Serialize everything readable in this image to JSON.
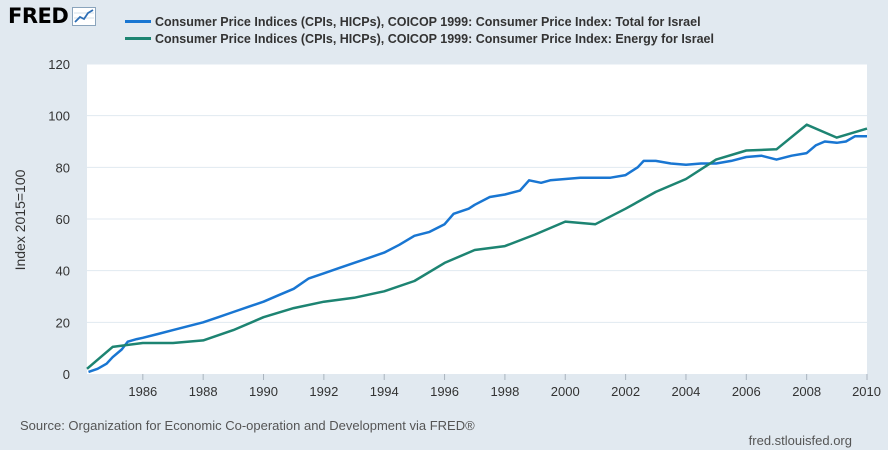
{
  "brand": {
    "logo_text": "FRED",
    "logo_icon": "chart-line-icon"
  },
  "chart_data": {
    "type": "line",
    "xlabel": "",
    "ylabel": "Index 2015=100",
    "xlim": [
      1984.15,
      2010.0
    ],
    "ylim": [
      0,
      120
    ],
    "xticks": [
      1986,
      1988,
      1990,
      1992,
      1994,
      1996,
      1998,
      2000,
      2002,
      2004,
      2006,
      2008,
      2010
    ],
    "yticks": [
      0,
      20,
      40,
      60,
      80,
      100,
      120
    ],
    "grid": true,
    "legend_position": "top",
    "series": [
      {
        "name": "Consumer Price Indices (CPIs, HICPs), COICOP 1999: Consumer Price Index: Total for Israel",
        "color": "#1976d2",
        "points": [
          [
            1984.2,
            0.8
          ],
          [
            1984.5,
            2.0
          ],
          [
            1984.8,
            4.0
          ],
          [
            1985.0,
            6.5
          ],
          [
            1985.3,
            9.5
          ],
          [
            1985.5,
            12.5
          ],
          [
            1985.8,
            13.5
          ],
          [
            1986.0,
            14.0
          ],
          [
            1986.5,
            15.5
          ],
          [
            1987.0,
            17.0
          ],
          [
            1987.5,
            18.5
          ],
          [
            1988.0,
            20.0
          ],
          [
            1988.5,
            22.0
          ],
          [
            1989.0,
            24.0
          ],
          [
            1989.5,
            26.0
          ],
          [
            1990.0,
            28.0
          ],
          [
            1990.5,
            30.5
          ],
          [
            1991.0,
            33.0
          ],
          [
            1991.5,
            37.0
          ],
          [
            1992.0,
            39.0
          ],
          [
            1992.5,
            41.0
          ],
          [
            1993.0,
            43.0
          ],
          [
            1993.5,
            45.0
          ],
          [
            1994.0,
            47.0
          ],
          [
            1994.5,
            50.0
          ],
          [
            1995.0,
            53.5
          ],
          [
            1995.5,
            55.0
          ],
          [
            1996.0,
            58.0
          ],
          [
            1996.3,
            62.0
          ],
          [
            1996.8,
            64.0
          ],
          [
            1997.0,
            65.5
          ],
          [
            1997.5,
            68.5
          ],
          [
            1998.0,
            69.5
          ],
          [
            1998.5,
            71.0
          ],
          [
            1998.8,
            75.0
          ],
          [
            1999.2,
            74.0
          ],
          [
            1999.5,
            75.0
          ],
          [
            2000.0,
            75.5
          ],
          [
            2000.5,
            76.0
          ],
          [
            2001.0,
            76.0
          ],
          [
            2001.5,
            76.0
          ],
          [
            2002.0,
            77.0
          ],
          [
            2002.4,
            80.0
          ],
          [
            2002.6,
            82.5
          ],
          [
            2003.0,
            82.5
          ],
          [
            2003.5,
            81.5
          ],
          [
            2004.0,
            81.0
          ],
          [
            2004.5,
            81.5
          ],
          [
            2005.0,
            81.5
          ],
          [
            2005.5,
            82.5
          ],
          [
            2006.0,
            84.0
          ],
          [
            2006.5,
            84.5
          ],
          [
            2007.0,
            83.0
          ],
          [
            2007.5,
            84.5
          ],
          [
            2008.0,
            85.5
          ],
          [
            2008.3,
            88.5
          ],
          [
            2008.6,
            90.0
          ],
          [
            2009.0,
            89.5
          ],
          [
            2009.3,
            90.0
          ],
          [
            2009.6,
            92.0
          ],
          [
            2010.0,
            92.0
          ]
        ]
      },
      {
        "name": "Consumer Price Indices (CPIs, HICPs), COICOP 1999: Consumer Price Index: Energy for Israel",
        "color": "#1d8472",
        "points": [
          [
            1984.15,
            2.0
          ],
          [
            1985.0,
            10.5
          ],
          [
            1986.0,
            12.0
          ],
          [
            1987.0,
            12.0
          ],
          [
            1988.0,
            13.0
          ],
          [
            1989.0,
            17.0
          ],
          [
            1990.0,
            22.0
          ],
          [
            1991.0,
            25.5
          ],
          [
            1992.0,
            28.0
          ],
          [
            1993.0,
            29.5
          ],
          [
            1994.0,
            32.0
          ],
          [
            1995.0,
            36.0
          ],
          [
            1996.0,
            43.0
          ],
          [
            1997.0,
            48.0
          ],
          [
            1998.0,
            49.5
          ],
          [
            1999.0,
            54.0
          ],
          [
            2000.0,
            59.0
          ],
          [
            2001.0,
            58.0
          ],
          [
            2002.0,
            64.0
          ],
          [
            2003.0,
            70.5
          ],
          [
            2004.0,
            75.5
          ],
          [
            2005.0,
            83.0
          ],
          [
            2006.0,
            86.5
          ],
          [
            2007.0,
            87.0
          ],
          [
            2008.0,
            96.5
          ],
          [
            2009.0,
            91.5
          ],
          [
            2010.0,
            95.0
          ]
        ]
      }
    ]
  },
  "footer": {
    "source": "Source: Organization for Economic Co-operation and Development via FRED®",
    "site": "fred.stlouisfed.org"
  }
}
